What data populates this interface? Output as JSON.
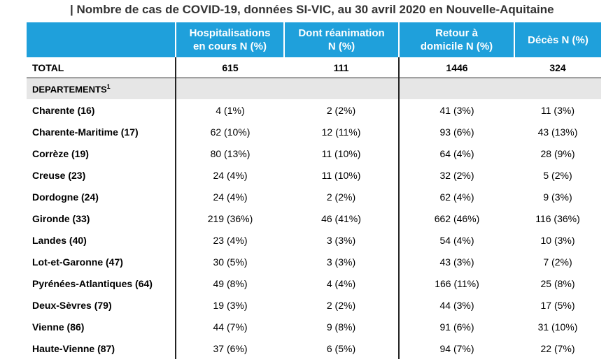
{
  "title": "| Nombre de cas de COVID-19, données SI-VIC, au 30 avril 2020 en Nouvelle-Aquitaine",
  "columns": [
    {
      "line1": "",
      "line2": ""
    },
    {
      "line1": "Hospitalisations",
      "line2": "en cours N (%)"
    },
    {
      "line1": "Dont réanimation",
      "line2": "N (%)"
    },
    {
      "line1": "Retour à",
      "line2": "domicile N (%)"
    },
    {
      "line1": "Décès N (%)",
      "line2": ""
    }
  ],
  "total": {
    "label": "TOTAL",
    "hosp": "615",
    "rea": "111",
    "retour": "1446",
    "deces": "324"
  },
  "section": {
    "label": "DEPARTEMENTS",
    "sup": "1"
  },
  "rows": [
    {
      "name": "Charente (16)",
      "hosp": "4 (1%)",
      "rea": "2 (2%)",
      "retour": "41 (3%)",
      "deces": "11 (3%)"
    },
    {
      "name": "Charente-Maritime (17)",
      "hosp": "62 (10%)",
      "rea": "12 (11%)",
      "retour": "93 (6%)",
      "deces": "43 (13%)"
    },
    {
      "name": "Corrèze (19)",
      "hosp": "80 (13%)",
      "rea": "11 (10%)",
      "retour": "64 (4%)",
      "deces": "28 (9%)"
    },
    {
      "name": "Creuse (23)",
      "hosp": "24 (4%)",
      "rea": "11 (10%)",
      "retour": "32 (2%)",
      "deces": "5 (2%)"
    },
    {
      "name": "Dordogne (24)",
      "hosp": "24 (4%)",
      "rea": "2 (2%)",
      "retour": "62 (4%)",
      "deces": "9 (3%)"
    },
    {
      "name": "Gironde (33)",
      "hosp": "219 (36%)",
      "rea": "46 (41%)",
      "retour": "662 (46%)",
      "deces": "116 (36%)"
    },
    {
      "name": "Landes (40)",
      "hosp": "23 (4%)",
      "rea": "3 (3%)",
      "retour": "54 (4%)",
      "deces": "10 (3%)"
    },
    {
      "name": "Lot-et-Garonne (47)",
      "hosp": "30 (5%)",
      "rea": "3 (3%)",
      "retour": "43 (3%)",
      "deces": "7 (2%)"
    },
    {
      "name": "Pyrénées-Atlantiques (64)",
      "hosp": "49 (8%)",
      "rea": "4 (4%)",
      "retour": "166 (11%)",
      "deces": "25 (8%)"
    },
    {
      "name": "Deux-Sèvres (79)",
      "hosp": "19 (3%)",
      "rea": "2 (2%)",
      "retour": "44 (3%)",
      "deces": "17 (5%)"
    },
    {
      "name": "Vienne (86)",
      "hosp": "44 (7%)",
      "rea": "9 (8%)",
      "retour": "91 (6%)",
      "deces": "31 (10%)"
    },
    {
      "name": "Haute-Vienne (87)",
      "hosp": "37 (6%)",
      "rea": "6 (5%)",
      "retour": "94 (7%)",
      "deces": "22 (7%)"
    }
  ]
}
